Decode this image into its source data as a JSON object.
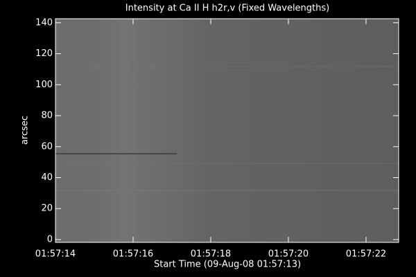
{
  "chart_data": {
    "type": "image",
    "title": "Intensity at Ca II H h2r,v (Fixed Wavelengths)",
    "x_label": "Start Time (09-Aug-08 01:57:13)",
    "y_label": "arcsec",
    "xlim": [
      1,
      9.84
    ],
    "xticks": [
      {
        "value": 1,
        "label": "01:57:14"
      },
      {
        "value": 3,
        "label": "01:57:16"
      },
      {
        "value": 5,
        "label": "01:57:18"
      },
      {
        "value": 7,
        "label": "01:57:20"
      },
      {
        "value": 9,
        "label": "01:57:22"
      }
    ],
    "ylim": [
      -1.8,
      142.6
    ],
    "yticks": [
      0,
      20,
      40,
      60,
      80,
      100,
      120,
      140
    ]
  }
}
